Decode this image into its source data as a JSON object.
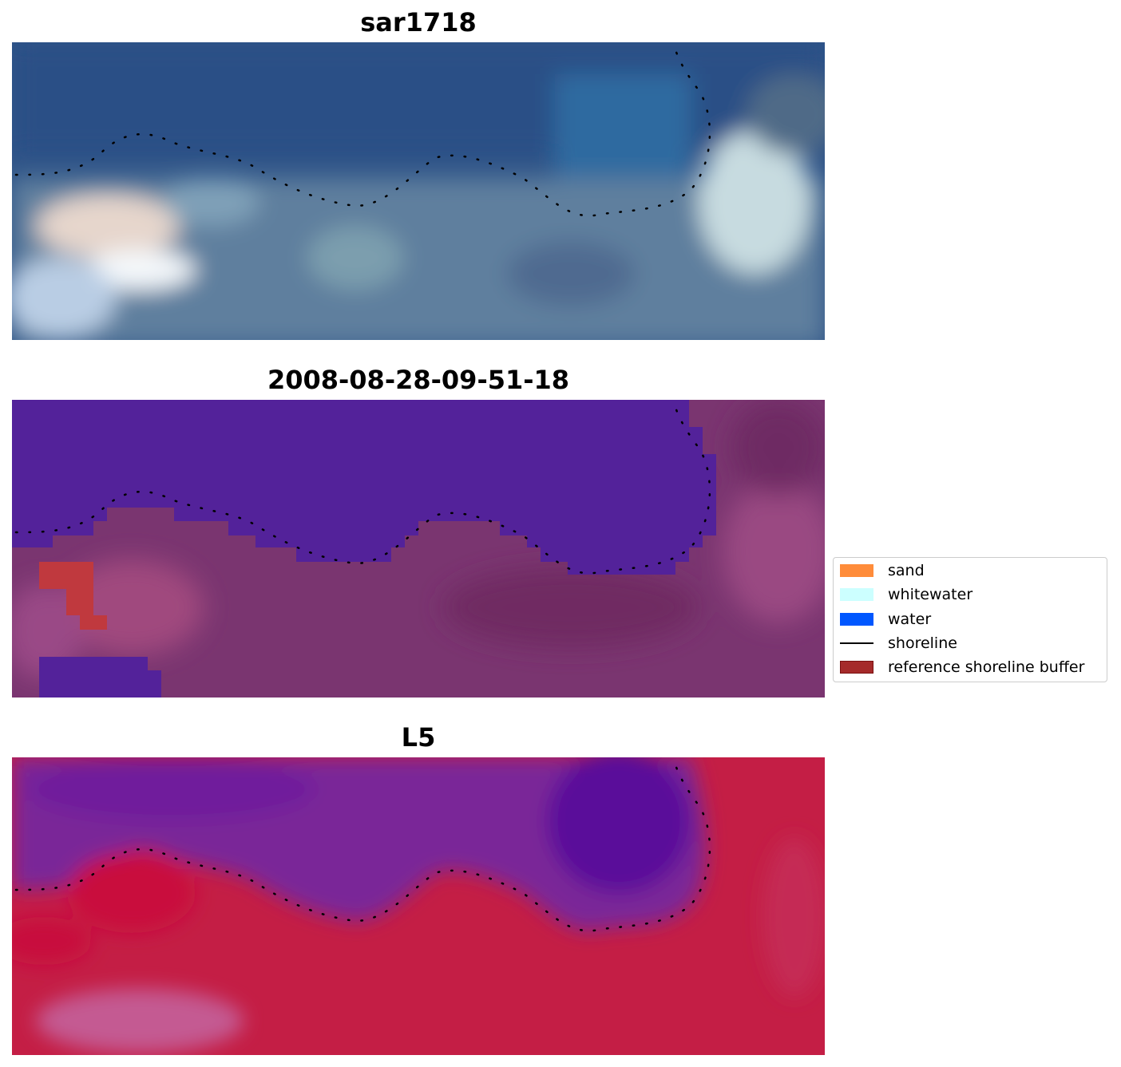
{
  "panels": [
    {
      "title": "sar1718",
      "name": "rgb"
    },
    {
      "title": "2008-08-28-09-51-18",
      "name": "classified"
    },
    {
      "title": "L5",
      "name": "mndwi"
    }
  ],
  "legend": {
    "items": [
      {
        "label": "sand",
        "type": "patch",
        "color": "#ff8c3a"
      },
      {
        "label": "whitewater",
        "type": "patch",
        "color": "#ccffff"
      },
      {
        "label": "water",
        "type": "patch",
        "color": "#0057ff"
      },
      {
        "label": "shoreline",
        "type": "line",
        "color": "#000000"
      },
      {
        "label": "reference shoreline buffer",
        "type": "patch",
        "color": "#a52a2a",
        "edge": "#7a1010"
      }
    ]
  },
  "colors": {
    "water_class": "#53229a",
    "land_class": "#7a3570",
    "buffer_class": "#c0393e",
    "mndwi_water": "#6a1fa0",
    "mndwi_land": "#c41e45"
  }
}
